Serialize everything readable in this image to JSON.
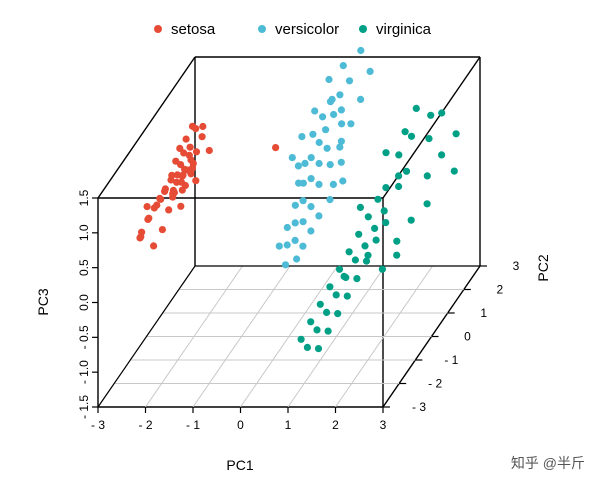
{
  "chart_data": {
    "type": "scatter",
    "subtype": "3d-scatter",
    "xlabel": "PC1",
    "ylabel": "PC2",
    "zlabel": "PC3",
    "xlim": [
      -3,
      3
    ],
    "ylim": [
      -3,
      3
    ],
    "zlim": [
      -1.5,
      1.5
    ],
    "x_ticks": [
      "- 3",
      "- 2",
      "- 1",
      "0",
      "1",
      "2",
      "3"
    ],
    "y_ticks": [
      "- 3",
      "- 2",
      "- 1",
      "0",
      "1",
      "2",
      "3"
    ],
    "z_ticks": [
      "- 1.5",
      "- 1.0",
      "- 0.5",
      "0.0",
      "0.5",
      "1.0",
      "1.5"
    ],
    "grid": true,
    "grid_plane": "floor",
    "legend_position": "top",
    "series": [
      {
        "name": "setosa",
        "color": "#E64B35",
        "points": [
          [
            -2.1,
            0.2,
            1.45
          ],
          [
            -2.05,
            0.25,
            1.4
          ],
          [
            -2.2,
            0.1,
            1.3
          ],
          [
            -2.3,
            0.0,
            1.2
          ],
          [
            -2.15,
            0.2,
            1.15
          ],
          [
            -2.25,
            0.1,
            1.1
          ],
          [
            -2.35,
            -0.1,
            1.05
          ],
          [
            -2.2,
            0.3,
            1.0
          ],
          [
            -2.3,
            0.05,
            0.95
          ],
          [
            -2.1,
            0.25,
            0.9
          ],
          [
            -2.4,
            -0.2,
            0.88
          ],
          [
            -2.25,
            0.15,
            0.85
          ],
          [
            -2.35,
            0.0,
            0.82
          ],
          [
            -2.15,
            0.35,
            0.8
          ],
          [
            -2.45,
            -0.1,
            0.78
          ],
          [
            -2.3,
            0.2,
            0.75
          ],
          [
            -2.5,
            -0.3,
            0.72
          ],
          [
            -2.2,
            0.4,
            0.7
          ],
          [
            -2.4,
            0.1,
            0.68
          ],
          [
            -2.55,
            -0.2,
            0.65
          ],
          [
            -2.35,
            0.25,
            0.63
          ],
          [
            -2.6,
            -0.35,
            0.6
          ],
          [
            -2.45,
            0.05,
            0.58
          ],
          [
            -2.3,
            0.35,
            0.55
          ],
          [
            -2.65,
            -0.15,
            0.52
          ],
          [
            -2.5,
            0.15,
            0.5
          ],
          [
            -2.7,
            -0.4,
            0.48
          ],
          [
            -2.4,
            0.45,
            0.45
          ],
          [
            -2.75,
            -0.1,
            0.42
          ],
          [
            -2.55,
            0.3,
            0.4
          ],
          [
            -2.8,
            -0.5,
            0.35
          ],
          [
            -2.85,
            -0.3,
            0.3
          ],
          [
            -2.9,
            -0.6,
            0.2
          ],
          [
            -2.95,
            -0.5,
            0.1
          ],
          [
            -3.0,
            -0.4,
            0.05
          ],
          [
            -2.6,
            0.55,
            0.38
          ],
          [
            -2.45,
            0.6,
            0.6
          ],
          [
            -2.25,
            0.55,
            0.85
          ],
          [
            -2.0,
            0.5,
            1.2
          ],
          [
            -1.95,
            0.4,
            1.38
          ],
          [
            -2.1,
            0.45,
            1.0
          ],
          [
            -2.3,
            0.5,
            0.72
          ],
          [
            -2.6,
            0.2,
            0.25
          ],
          [
            -2.7,
            0.1,
            0.0
          ],
          [
            -2.85,
            0.0,
            -0.2
          ],
          [
            -2.5,
            0.65,
            0.15
          ],
          [
            -2.2,
            0.7,
            0.5
          ],
          [
            -1.9,
            0.65,
            0.95
          ],
          [
            -1.2,
            2.7,
            0.3
          ],
          [
            -2.75,
            -0.7,
            0.6
          ]
        ]
      },
      {
        "name": "versicolor",
        "color": "#4DBBD5",
        "points": [
          [
            0.6,
            0.9,
            1.6
          ],
          [
            0.8,
            0.8,
            1.7
          ],
          [
            0.5,
            1.1,
            1.5
          ],
          [
            0.7,
            0.7,
            1.45
          ],
          [
            0.9,
            0.6,
            1.55
          ],
          [
            0.4,
            0.9,
            1.35
          ],
          [
            0.6,
            0.5,
            1.3
          ],
          [
            0.8,
            0.9,
            1.25
          ],
          [
            0.3,
            0.6,
            1.2
          ],
          [
            0.5,
            0.4,
            1.15
          ],
          [
            0.7,
            0.3,
            1.1
          ],
          [
            0.9,
            0.5,
            1.05
          ],
          [
            0.4,
            0.2,
            1.0
          ],
          [
            0.6,
            0.1,
            0.95
          ],
          [
            0.8,
            0.2,
            0.9
          ],
          [
            0.2,
            0.4,
            0.85
          ],
          [
            0.5,
            -0.1,
            0.8
          ],
          [
            0.7,
            -0.2,
            0.75
          ],
          [
            0.3,
            0.0,
            0.7
          ],
          [
            0.9,
            0.1,
            0.65
          ],
          [
            0.1,
            0.3,
            0.6
          ],
          [
            0.4,
            -0.3,
            0.55
          ],
          [
            0.6,
            -0.4,
            0.5
          ],
          [
            0.2,
            -0.2,
            0.45
          ],
          [
            0.8,
            -0.5,
            0.4
          ],
          [
            0.5,
            -0.6,
            0.35
          ],
          [
            0.3,
            -0.5,
            0.3
          ],
          [
            0.7,
            -0.7,
            0.25
          ],
          [
            0.1,
            -0.4,
            0.2
          ],
          [
            0.4,
            -0.8,
            0.15
          ],
          [
            0.6,
            -0.9,
            0.1
          ],
          [
            0.2,
            -0.7,
            0.05
          ],
          [
            0.0,
            -0.6,
            0.0
          ],
          [
            0.5,
            -1.0,
            -0.05
          ],
          [
            0.3,
            -1.1,
            -0.1
          ],
          [
            1.0,
            0.3,
            1.2
          ],
          [
            1.1,
            0.6,
            1.35
          ],
          [
            1.2,
            0.9,
            1.6
          ],
          [
            1.3,
            1.2,
            1.9
          ],
          [
            1.0,
            1.5,
            2.1
          ],
          [
            0.4,
            1.3,
            1.75
          ],
          [
            0.2,
            1.0,
            1.4
          ],
          [
            0.0,
            0.8,
            1.1
          ],
          [
            -0.1,
            0.5,
            0.9
          ],
          [
            1.2,
            -0.2,
            0.8
          ],
          [
            1.0,
            -0.4,
            0.6
          ],
          [
            1.1,
            0.0,
            1.0
          ],
          [
            0.9,
            1.1,
            1.8
          ],
          [
            0.7,
            1.3,
            1.95
          ],
          [
            0.3,
            -0.3,
            1.05
          ]
        ]
      },
      {
        "name": "virginica",
        "color": "#00A087",
        "points": [
          [
            2.2,
            2.3,
            0.9
          ],
          [
            2.5,
            2.1,
            1.0
          ],
          [
            2.3,
            1.9,
            0.7
          ],
          [
            2.0,
            1.7,
            0.8
          ],
          [
            1.8,
            1.5,
            0.6
          ],
          [
            1.9,
            1.2,
            0.4
          ],
          [
            1.7,
            1.0,
            0.3
          ],
          [
            2.1,
            1.1,
            0.5
          ],
          [
            1.6,
            0.8,
            0.2
          ],
          [
            1.8,
            0.6,
            0.1
          ],
          [
            2.0,
            0.9,
            0.35
          ],
          [
            1.5,
            0.5,
            0.05
          ],
          [
            1.7,
            0.3,
            -0.05
          ],
          [
            1.9,
            0.4,
            0.0
          ],
          [
            1.4,
            0.2,
            -0.1
          ],
          [
            1.6,
            0.0,
            -0.2
          ],
          [
            1.8,
            0.1,
            -0.15
          ],
          [
            1.3,
            -0.1,
            -0.25
          ],
          [
            1.5,
            -0.3,
            -0.3
          ],
          [
            1.7,
            -0.2,
            -0.35
          ],
          [
            1.2,
            -0.4,
            -0.4
          ],
          [
            1.4,
            -0.6,
            -0.45
          ],
          [
            1.6,
            -0.5,
            -0.5
          ],
          [
            1.1,
            -0.7,
            -0.55
          ],
          [
            1.3,
            -0.9,
            -0.6
          ],
          [
            1.5,
            -0.8,
            -0.65
          ],
          [
            1.0,
            -1.0,
            -0.7
          ],
          [
            1.2,
            -1.2,
            -0.75
          ],
          [
            1.4,
            -1.1,
            -0.8
          ],
          [
            0.9,
            -1.3,
            -0.85
          ],
          [
            1.1,
            -1.5,
            -0.9
          ],
          [
            1.3,
            -1.4,
            -0.95
          ],
          [
            0.8,
            -1.6,
            -1.0
          ],
          [
            1.0,
            -1.8,
            -1.05
          ],
          [
            1.2,
            -1.7,
            -1.1
          ],
          [
            2.4,
            1.5,
            0.3
          ],
          [
            2.6,
            1.8,
            0.5
          ],
          [
            2.8,
            2.0,
            0.2
          ],
          [
            2.3,
            0.8,
            -0.1
          ],
          [
            2.1,
            0.5,
            -0.3
          ],
          [
            2.5,
            1.2,
            0.0
          ],
          [
            1.9,
            1.6,
            0.9
          ],
          [
            2.2,
            0.2,
            -0.4
          ],
          [
            1.8,
            -0.4,
            -0.2
          ],
          [
            2.0,
            -0.1,
            -0.5
          ],
          [
            1.6,
            1.3,
            0.7
          ],
          [
            2.7,
            2.4,
            0.6
          ],
          [
            1.5,
            -1.0,
            -0.3
          ],
          [
            1.3,
            0.6,
            0.15
          ],
          [
            2.0,
            2.0,
            1.1
          ]
        ]
      }
    ]
  },
  "watermark": "知乎 @半斤"
}
